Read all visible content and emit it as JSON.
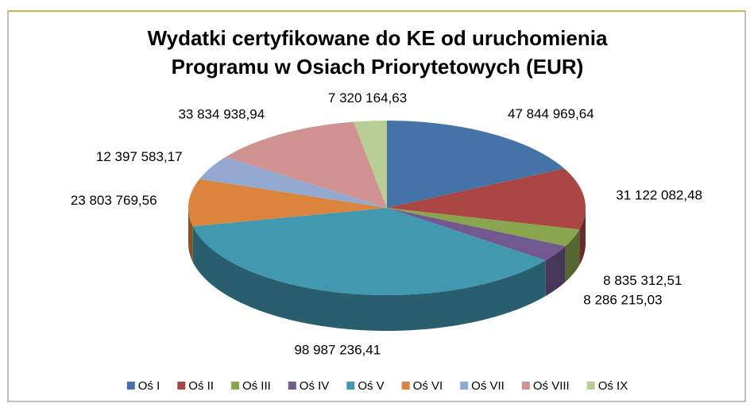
{
  "chart_data": {
    "type": "pie",
    "title": [
      "Wydatki certyfikowane do KE od uruchomienia",
      "Programu w Osiach Priorytetowych (EUR)"
    ],
    "categories": [
      "Oś I",
      "Oś II",
      "Oś III",
      "Oś IV",
      "Oś V",
      "Oś VI",
      "Oś VII",
      "Oś VIII",
      "Oś IX"
    ],
    "values": [
      47844969.64,
      31122082.48,
      8835312.51,
      8286215.03,
      98987236.41,
      23803769.56,
      12397583.17,
      33834938.94,
      7320164.63
    ],
    "value_labels": [
      "47 844 969,64",
      "31 122 082,48",
      "8 835 312,51",
      "8 286 215,03",
      "98 987 236,41",
      "23 803 769,56",
      "12 397 583,17",
      "33 834 938,94",
      "7 320 164,63"
    ],
    "colors": [
      "#4572a7",
      "#aa4643",
      "#89a54e",
      "#71588f",
      "#4198af",
      "#db843d",
      "#93a9cf",
      "#d19392",
      "#b9cd96"
    ],
    "legend": "bottom"
  }
}
